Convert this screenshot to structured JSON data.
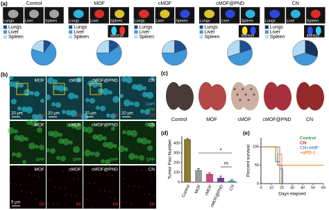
{
  "panel_letters": [
    "(a)",
    "(b)",
    "(c)",
    "(d)",
    "(e)"
  ],
  "panel_a": {
    "groups": [
      {
        "title": "Control",
        "image_labels": [
          "Lungs",
          "Liver",
          "Spleen"
        ]
      },
      {
        "title": "MOF",
        "image_labels": [
          "Lungs",
          "Liver",
          "Spleen",
          "kidneys"
        ]
      },
      {
        "title": "cMOF",
        "image_labels": [
          "Lungs",
          "Liver",
          "Spleen"
        ]
      },
      {
        "title": "cMOF@PND",
        "image_labels": [
          "Lungs",
          "Liver",
          "Spleen",
          "kidneys"
        ]
      },
      {
        "title": "CN",
        "image_labels": [
          "Lungs",
          "Liver",
          "Spleen",
          "kidneys"
        ]
      }
    ]
  },
  "panel_b": {
    "columns": [
      "MOF",
      "cMOF",
      "cMOF@PND",
      "CN"
    ],
    "channels": [
      "DAPI",
      "GFP",
      "DiI"
    ],
    "scale_bar_top": "20 μm",
    "scale_bar_bottom": "5 μm"
  },
  "panel_c": {
    "labels": [
      "Control",
      "MOF",
      "cMOF",
      "cMOF@PND",
      "CN"
    ]
  },
  "chart_data": [
    {
      "type": "pie",
      "categories": [
        "Lungs",
        "Liver",
        "Spleen"
      ],
      "values": [
        10,
        70,
        20
      ],
      "colors": [
        "#1d4f91",
        "#3f97d8",
        "#b3dcf2"
      ]
    },
    {
      "type": "pie",
      "categories": [
        "Lungs",
        "Liver",
        "Spleen"
      ],
      "values": [
        15,
        60,
        25
      ],
      "colors": [
        "#1d4f91",
        "#3f97d8",
        "#b3dcf2"
      ]
    },
    {
      "type": "pie",
      "categories": [
        "Lungs",
        "Liver",
        "Spleen"
      ],
      "values": [
        20,
        55,
        25
      ],
      "colors": [
        "#1d4f91",
        "#3f97d8",
        "#b3dcf2"
      ]
    },
    {
      "type": "pie",
      "categories": [
        "Lungs",
        "Liver",
        "Spleen"
      ],
      "values": [
        20,
        50,
        30
      ],
      "colors": [
        "#1d4f91",
        "#3f97d8",
        "#b3dcf2"
      ]
    },
    {
      "type": "pie",
      "categories": [
        "Lungs",
        "Liver",
        "Spleen"
      ],
      "values": [
        30,
        40,
        30
      ],
      "colors": [
        "#16335e",
        "#3f97d8",
        "#b3dcf2"
      ]
    },
    {
      "type": "bar",
      "ylabel": "Tumor Foci Number",
      "categories": [
        "Control",
        "MOF",
        "cMOF",
        "cMOF@PND",
        "CN"
      ],
      "values": [
        440,
        125,
        85,
        45,
        15
      ],
      "errors": [
        8,
        15,
        10,
        18,
        10
      ],
      "colors": [
        "#8a7a34",
        "#9a9a9a",
        "#d0457f",
        "#7a3d9a",
        "#2f9d9a"
      ],
      "ylim": [
        0,
        470
      ],
      "yticks": [
        0,
        100,
        200,
        300,
        400
      ],
      "annotations": [
        "*",
        "ns"
      ]
    },
    {
      "type": "line",
      "ylabel": "Percent survival",
      "xlabel": "Days elapsed",
      "xlim": [
        0,
        60
      ],
      "xticks": [
        0,
        10,
        20,
        30,
        40,
        50,
        60
      ],
      "ylim": [
        0,
        125
      ],
      "yticks": [
        0,
        50,
        100
      ],
      "series": [
        {
          "name": "Control",
          "color": "#2e9e3a",
          "x": [
            0,
            14,
            14,
            18,
            18
          ],
          "values": [
            100,
            100,
            60,
            60,
            0
          ]
        },
        {
          "name": "CN",
          "color": "#d12a2a",
          "x": [
            0,
            16,
            16,
            20,
            20
          ],
          "values": [
            100,
            100,
            50,
            50,
            0
          ]
        },
        {
          "name": "CN+AMF",
          "color": "#5b8fd6",
          "x": [
            0,
            18,
            18,
            21,
            21
          ],
          "values": [
            100,
            100,
            40,
            40,
            0
          ]
        },
        {
          "name": "+αPD-1",
          "color": "#f08a1c",
          "x": [
            0,
            16,
            16,
            20,
            20,
            60
          ],
          "values": [
            100,
            100,
            80,
            80,
            50,
            50
          ]
        }
      ]
    }
  ]
}
